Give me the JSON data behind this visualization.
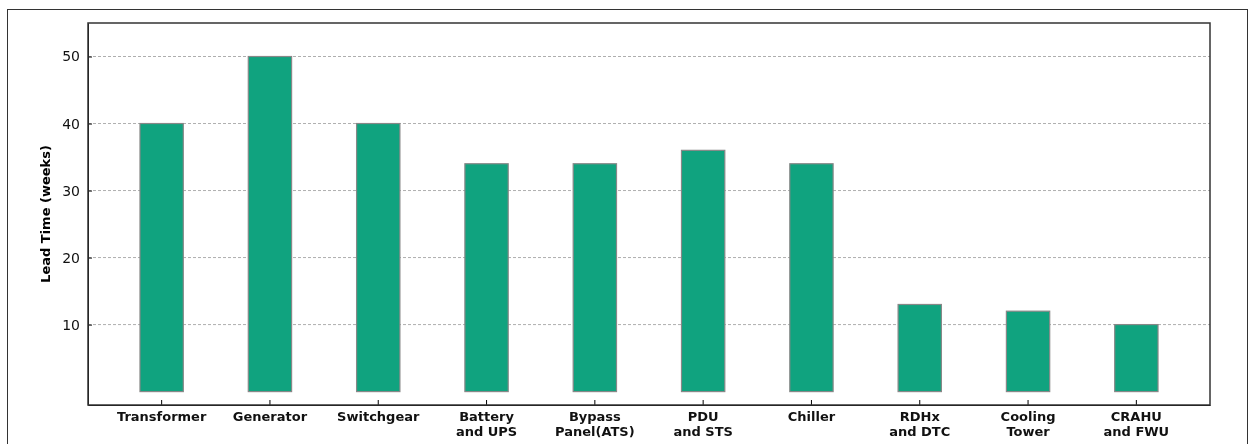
{
  "chart_data": {
    "type": "bar",
    "ylabel": "Lead Time (weeks)",
    "categories": [
      "Transformer",
      "Generator",
      "Switchgear",
      "Battery\nand UPS",
      "Bypass\nPanel(ATS)",
      "PDU\nand STS",
      "Chiller",
      "RDHx\nand DTC",
      "Cooling\nTower",
      "CRAHU\nand FWU"
    ],
    "values": [
      40,
      50,
      40,
      34,
      34,
      36,
      34,
      13,
      12,
      10
    ],
    "color": "#10a37f",
    "ylim": [
      -2,
      55
    ],
    "yticks": [
      10,
      20,
      30,
      40,
      50
    ],
    "grid": "y"
  }
}
